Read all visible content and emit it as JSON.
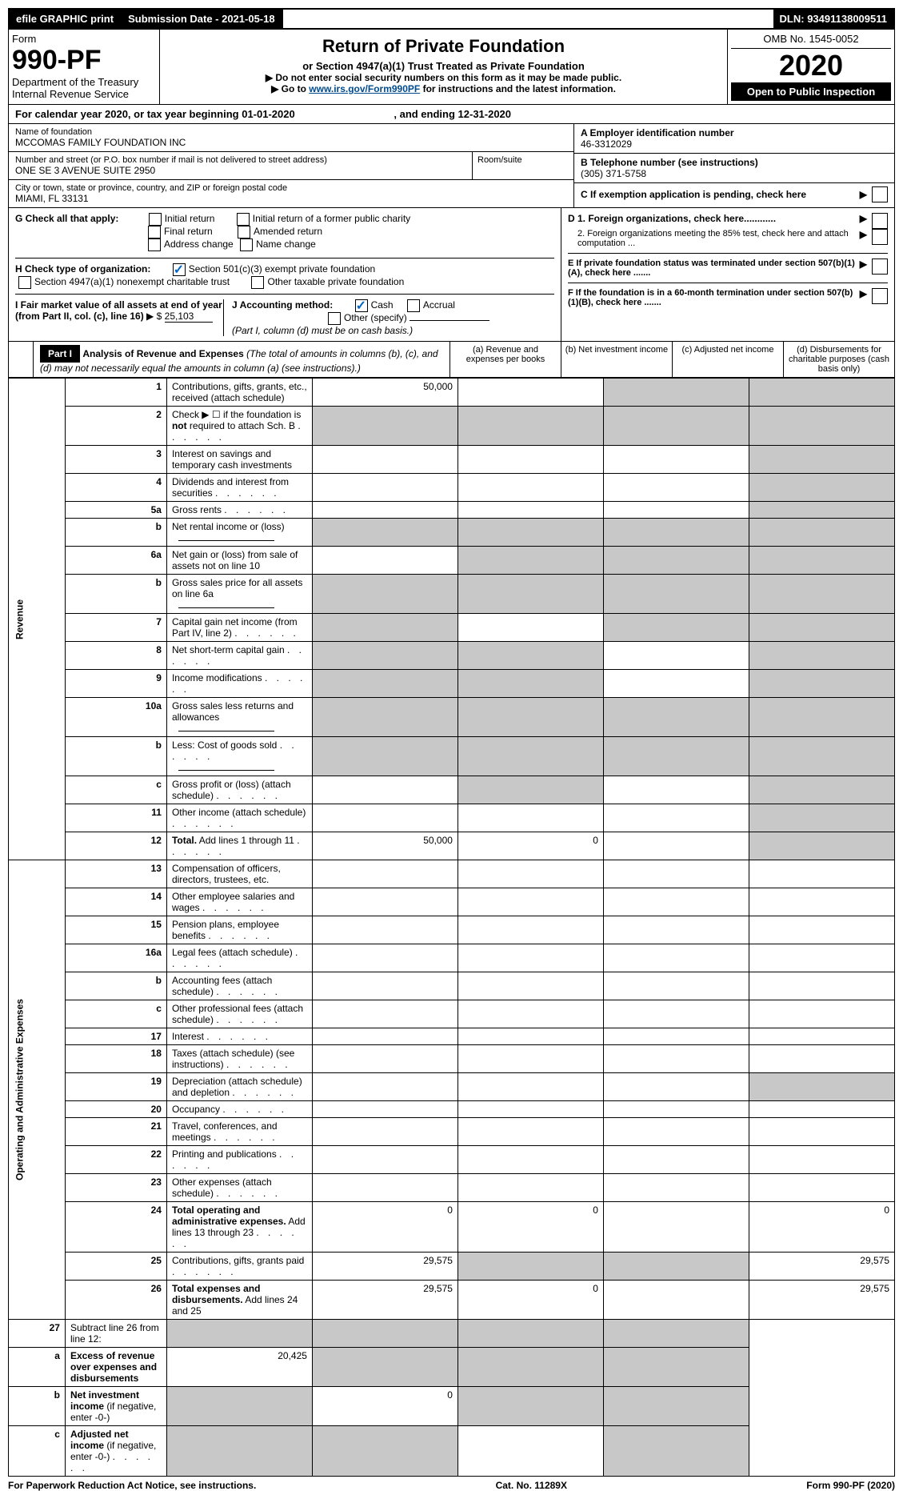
{
  "topbar": {
    "efile": "efile GRAPHIC print",
    "submission_label": "Submission Date - 2021-05-18",
    "dln_label": "DLN: 93491138009511"
  },
  "header": {
    "form_label": "Form",
    "form_number": "990-PF",
    "dept": "Department of the Treasury",
    "irs": "Internal Revenue Service",
    "title": "Return of Private Foundation",
    "subtitle": "or Section 4947(a)(1) Trust Treated as Private Foundation",
    "instr1": "▶ Do not enter social security numbers on this form as it may be made public.",
    "instr2_prefix": "▶ Go to ",
    "instr2_link": "www.irs.gov/Form990PF",
    "instr2_suffix": " for instructions and the latest information.",
    "omb": "OMB No. 1545-0052",
    "year": "2020",
    "open": "Open to Public Inspection"
  },
  "calyear": {
    "text": "For calendar year 2020, or tax year beginning 01-01-2020",
    "ending": ", and ending 12-31-2020"
  },
  "info": {
    "name_label": "Name of foundation",
    "name": "MCCOMAS FAMILY FOUNDATION INC",
    "addr_label": "Number and street (or P.O. box number if mail is not delivered to street address)",
    "addr": "ONE SE 3 AVENUE SUITE 2950",
    "room_label": "Room/suite",
    "city_label": "City or town, state or province, country, and ZIP or foreign postal code",
    "city": "MIAMI, FL  33131",
    "ein_label": "A Employer identification number",
    "ein": "46-3312029",
    "phone_label": "B Telephone number (see instructions)",
    "phone": "(305) 371-5758",
    "c_label": "C If exemption application is pending, check here"
  },
  "checks": {
    "g_label": "G Check all that apply:",
    "g1": "Initial return",
    "g2": "Initial return of a former public charity",
    "g3": "Final return",
    "g4": "Amended return",
    "g5": "Address change",
    "g6": "Name change",
    "h_label": "H Check type of organization:",
    "h1": "Section 501(c)(3) exempt private foundation",
    "h2": "Section 4947(a)(1) nonexempt charitable trust",
    "h3": "Other taxable private foundation",
    "i_label": "I Fair market value of all assets at end of year (from Part II, col. (c), line 16)",
    "i_prefix": "▶ $",
    "i_value": "25,103",
    "j_label": "J Accounting method:",
    "j1": "Cash",
    "j2": "Accrual",
    "j3": "Other (specify)",
    "j_note": "(Part I, column (d) must be on cash basis.)",
    "d1": "D 1. Foreign organizations, check here............",
    "d2": "2. Foreign organizations meeting the 85% test, check here and attach computation ...",
    "e_label": "E  If private foundation status was terminated under section 507(b)(1)(A), check here .......",
    "f_label": "F  If the foundation is in a 60-month termination under section 507(b)(1)(B), check here .......",
    "arrow": "▶"
  },
  "part1": {
    "label": "Part I",
    "title": "Analysis of Revenue and Expenses",
    "note": "(The total of amounts in columns (b), (c), and (d) may not necessarily equal the amounts in column (a) (see instructions).)",
    "col_a": "(a)   Revenue and expenses per books",
    "col_b": "(b)    Net investment income",
    "col_c": "(c)   Adjusted net income",
    "col_d": "(d)   Disbursements for charitable purposes (cash basis only)"
  },
  "revenue_label": "Revenue",
  "expenses_label": "Operating and Administrative Expenses",
  "rows": [
    {
      "n": "1",
      "desc": "Contributions, gifts, grants, etc., received (attach schedule)",
      "a": "50,000",
      "shade_b": false,
      "shade_c": true,
      "shade_d": true
    },
    {
      "n": "2",
      "desc": "Check ▶ ☐ if the foundation is <b>not</b> required to attach Sch. B",
      "dots": true,
      "shade_a": true,
      "shade_b": true,
      "shade_c": true,
      "shade_d": true
    },
    {
      "n": "3",
      "desc": "Interest on savings and temporary cash investments",
      "shade_d": true
    },
    {
      "n": "4",
      "desc": "Dividends and interest from securities",
      "dots": true,
      "shade_d": true
    },
    {
      "n": "5a",
      "desc": "Gross rents",
      "dots": true,
      "shade_d": true
    },
    {
      "n": "b",
      "desc": "Net rental income or (loss)",
      "input": true,
      "shade_a": true,
      "shade_b": true,
      "shade_c": true,
      "shade_d": true
    },
    {
      "n": "6a",
      "desc": "Net gain or (loss) from sale of assets not on line 10",
      "shade_b": true,
      "shade_c": true,
      "shade_d": true
    },
    {
      "n": "b",
      "desc": "Gross sales price for all assets on line 6a",
      "input": true,
      "shade_a": true,
      "shade_b": true,
      "shade_c": true,
      "shade_d": true
    },
    {
      "n": "7",
      "desc": "Capital gain net income (from Part IV, line 2)",
      "dots": true,
      "shade_a": true,
      "shade_c": true,
      "shade_d": true
    },
    {
      "n": "8",
      "desc": "Net short-term capital gain",
      "dots": true,
      "shade_a": true,
      "shade_b": true,
      "shade_d": true
    },
    {
      "n": "9",
      "desc": "Income modifications",
      "dots": true,
      "shade_a": true,
      "shade_b": true,
      "shade_d": true
    },
    {
      "n": "10a",
      "desc": "Gross sales less returns and allowances",
      "input": true,
      "shade_a": true,
      "shade_b": true,
      "shade_c": true,
      "shade_d": true
    },
    {
      "n": "b",
      "desc": "Less: Cost of goods sold",
      "dots": true,
      "input": true,
      "shade_a": true,
      "shade_b": true,
      "shade_c": true,
      "shade_d": true
    },
    {
      "n": "c",
      "desc": "Gross profit or (loss) (attach schedule)",
      "dots": true,
      "shade_b": true,
      "shade_d": true
    },
    {
      "n": "11",
      "desc": "Other income (attach schedule)",
      "dots": true,
      "shade_d": true
    },
    {
      "n": "12",
      "desc": "<b>Total.</b> Add lines 1 through 11",
      "dots": true,
      "a": "50,000",
      "b": "0",
      "shade_d": true
    }
  ],
  "exp_rows": [
    {
      "n": "13",
      "desc": "Compensation of officers, directors, trustees, etc."
    },
    {
      "n": "14",
      "desc": "Other employee salaries and wages",
      "dots": true
    },
    {
      "n": "15",
      "desc": "Pension plans, employee benefits",
      "dots": true
    },
    {
      "n": "16a",
      "desc": "Legal fees (attach schedule)",
      "dots": true
    },
    {
      "n": "b",
      "desc": "Accounting fees (attach schedule)",
      "dots": true
    },
    {
      "n": "c",
      "desc": "Other professional fees (attach schedule)",
      "dots": true
    },
    {
      "n": "17",
      "desc": "Interest",
      "dots": true
    },
    {
      "n": "18",
      "desc": "Taxes (attach schedule) (see instructions)",
      "dots": true
    },
    {
      "n": "19",
      "desc": "Depreciation (attach schedule) and depletion",
      "dots": true,
      "shade_d": true
    },
    {
      "n": "20",
      "desc": "Occupancy",
      "dots": true
    },
    {
      "n": "21",
      "desc": "Travel, conferences, and meetings",
      "dots": true
    },
    {
      "n": "22",
      "desc": "Printing and publications",
      "dots": true
    },
    {
      "n": "23",
      "desc": "Other expenses (attach schedule)",
      "dots": true
    },
    {
      "n": "24",
      "desc": "<b>Total operating and administrative expenses.</b> Add lines 13 through 23",
      "dots": true,
      "a": "0",
      "b": "0",
      "d": "0"
    },
    {
      "n": "25",
      "desc": "Contributions, gifts, grants paid",
      "dots": true,
      "a": "29,575",
      "shade_b": true,
      "shade_c": true,
      "d": "29,575"
    },
    {
      "n": "26",
      "desc": "<b>Total expenses and disbursements.</b> Add lines 24 and 25",
      "a": "29,575",
      "b": "0",
      "d": "29,575"
    }
  ],
  "final_rows": [
    {
      "n": "27",
      "desc": "Subtract line 26 from line 12:",
      "shade_a": true,
      "shade_b": true,
      "shade_c": true,
      "shade_d": true
    },
    {
      "n": "a",
      "desc": "<b>Excess of revenue over expenses and disbursements</b>",
      "a": "20,425",
      "shade_b": true,
      "shade_c": true,
      "shade_d": true
    },
    {
      "n": "b",
      "desc": "<b>Net investment income</b> (if negative, enter -0-)",
      "shade_a": true,
      "b": "0",
      "shade_c": true,
      "shade_d": true
    },
    {
      "n": "c",
      "desc": "<b>Adjusted net income</b> (if negative, enter -0-)",
      "dots": true,
      "shade_a": true,
      "shade_b": true,
      "shade_d": true
    }
  ],
  "footer": {
    "left": "For Paperwork Reduction Act Notice, see instructions.",
    "mid": "Cat. No. 11289X",
    "right": "Form 990-PF (2020)"
  }
}
